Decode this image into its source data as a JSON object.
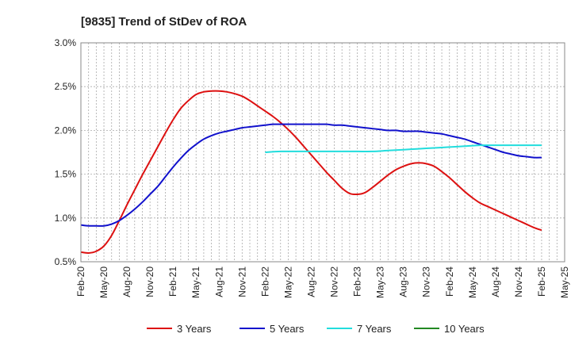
{
  "chart_data": {
    "type": "line",
    "title": "[9835]  Trend of StDev of ROA",
    "xlabel": "",
    "ylabel": "",
    "x_ticks": [
      "Feb-20",
      "May-20",
      "Aug-20",
      "Nov-20",
      "Feb-21",
      "May-21",
      "Aug-21",
      "Nov-21",
      "Feb-22",
      "May-22",
      "Aug-22",
      "Nov-22",
      "Feb-23",
      "May-23",
      "Aug-23",
      "Nov-23",
      "Feb-24",
      "May-24",
      "Aug-24",
      "Nov-24",
      "Feb-25",
      "May-25"
    ],
    "y_ticks": [
      "0.5%",
      "1.0%",
      "1.5%",
      "2.0%",
      "2.5%",
      "3.0%"
    ],
    "ylim": [
      0.5,
      3.0
    ],
    "y_unit": "%",
    "grid": true,
    "legend_position": "bottom",
    "series": [
      {
        "name": "3 Years",
        "color": "#dd1111",
        "points": [
          [
            "Feb-20",
            0.61
          ],
          [
            "Mar-20",
            0.6
          ],
          [
            "Apr-20",
            0.62
          ],
          [
            "May-20",
            0.68
          ],
          [
            "Jun-20",
            0.8
          ],
          [
            "Jul-20",
            0.97
          ],
          [
            "Aug-20",
            1.15
          ],
          [
            "Sep-20",
            1.32
          ],
          [
            "Oct-20",
            1.49
          ],
          [
            "Nov-20",
            1.65
          ],
          [
            "Dec-20",
            1.81
          ],
          [
            "Jan-21",
            1.97
          ],
          [
            "Feb-21",
            2.12
          ],
          [
            "Mar-21",
            2.25
          ],
          [
            "Apr-21",
            2.34
          ],
          [
            "May-21",
            2.41
          ],
          [
            "Jun-21",
            2.44
          ],
          [
            "Jul-21",
            2.45
          ],
          [
            "Aug-21",
            2.45
          ],
          [
            "Sep-21",
            2.44
          ],
          [
            "Oct-21",
            2.42
          ],
          [
            "Nov-21",
            2.39
          ],
          [
            "Dec-21",
            2.34
          ],
          [
            "Jan-22",
            2.28
          ],
          [
            "Feb-22",
            2.22
          ],
          [
            "Mar-22",
            2.16
          ],
          [
            "Apr-22",
            2.09
          ],
          [
            "May-22",
            2.01
          ],
          [
            "Jun-22",
            1.92
          ],
          [
            "Jul-22",
            1.82
          ],
          [
            "Aug-22",
            1.72
          ],
          [
            "Sep-22",
            1.62
          ],
          [
            "Oct-22",
            1.52
          ],
          [
            "Nov-22",
            1.43
          ],
          [
            "Dec-22",
            1.34
          ],
          [
            "Jan-23",
            1.28
          ],
          [
            "Feb-23",
            1.27
          ],
          [
            "Mar-23",
            1.29
          ],
          [
            "Apr-23",
            1.35
          ],
          [
            "May-23",
            1.42
          ],
          [
            "Jun-23",
            1.49
          ],
          [
            "Jul-23",
            1.55
          ],
          [
            "Aug-23",
            1.59
          ],
          [
            "Sep-23",
            1.62
          ],
          [
            "Oct-23",
            1.63
          ],
          [
            "Nov-23",
            1.62
          ],
          [
            "Dec-23",
            1.59
          ],
          [
            "Jan-24",
            1.53
          ],
          [
            "Feb-24",
            1.46
          ],
          [
            "Mar-24",
            1.38
          ],
          [
            "Apr-24",
            1.3
          ],
          [
            "May-24",
            1.23
          ],
          [
            "Jun-24",
            1.17
          ],
          [
            "Jul-24",
            1.13
          ],
          [
            "Aug-24",
            1.09
          ],
          [
            "Sep-24",
            1.05
          ],
          [
            "Oct-24",
            1.01
          ],
          [
            "Nov-24",
            0.97
          ],
          [
            "Dec-24",
            0.93
          ],
          [
            "Jan-25",
            0.89
          ],
          [
            "Feb-25",
            0.86
          ]
        ]
      },
      {
        "name": "5 Years",
        "color": "#1111cc",
        "points": [
          [
            "Feb-20",
            0.92
          ],
          [
            "Mar-20",
            0.91
          ],
          [
            "Apr-20",
            0.91
          ],
          [
            "May-20",
            0.91
          ],
          [
            "Jun-20",
            0.93
          ],
          [
            "Jul-20",
            0.97
          ],
          [
            "Aug-20",
            1.03
          ],
          [
            "Sep-20",
            1.1
          ],
          [
            "Oct-20",
            1.18
          ],
          [
            "Nov-20",
            1.27
          ],
          [
            "Dec-20",
            1.36
          ],
          [
            "Jan-21",
            1.47
          ],
          [
            "Feb-21",
            1.58
          ],
          [
            "Mar-21",
            1.68
          ],
          [
            "Apr-21",
            1.77
          ],
          [
            "May-21",
            1.84
          ],
          [
            "Jun-21",
            1.9
          ],
          [
            "Jul-21",
            1.94
          ],
          [
            "Aug-21",
            1.97
          ],
          [
            "Sep-21",
            1.99
          ],
          [
            "Oct-21",
            2.01
          ],
          [
            "Nov-21",
            2.03
          ],
          [
            "Dec-21",
            2.04
          ],
          [
            "Jan-22",
            2.05
          ],
          [
            "Feb-22",
            2.06
          ],
          [
            "Mar-22",
            2.07
          ],
          [
            "Apr-22",
            2.07
          ],
          [
            "May-22",
            2.07
          ],
          [
            "Jun-22",
            2.07
          ],
          [
            "Jul-22",
            2.07
          ],
          [
            "Aug-22",
            2.07
          ],
          [
            "Sep-22",
            2.07
          ],
          [
            "Oct-22",
            2.07
          ],
          [
            "Nov-22",
            2.06
          ],
          [
            "Dec-22",
            2.06
          ],
          [
            "Jan-23",
            2.05
          ],
          [
            "Feb-23",
            2.04
          ],
          [
            "Mar-23",
            2.03
          ],
          [
            "Apr-23",
            2.02
          ],
          [
            "May-23",
            2.01
          ],
          [
            "Jun-23",
            2.0
          ],
          [
            "Jul-23",
            2.0
          ],
          [
            "Aug-23",
            1.99
          ],
          [
            "Sep-23",
            1.99
          ],
          [
            "Oct-23",
            1.99
          ],
          [
            "Nov-23",
            1.98
          ],
          [
            "Dec-23",
            1.97
          ],
          [
            "Jan-24",
            1.96
          ],
          [
            "Feb-24",
            1.94
          ],
          [
            "Mar-24",
            1.92
          ],
          [
            "Apr-24",
            1.9
          ],
          [
            "May-24",
            1.87
          ],
          [
            "Jun-24",
            1.84
          ],
          [
            "Jul-24",
            1.81
          ],
          [
            "Aug-24",
            1.78
          ],
          [
            "Sep-24",
            1.75
          ],
          [
            "Oct-24",
            1.73
          ],
          [
            "Nov-24",
            1.71
          ],
          [
            "Dec-24",
            1.7
          ],
          [
            "Jan-25",
            1.69
          ],
          [
            "Feb-25",
            1.69
          ]
        ]
      },
      {
        "name": "7 Years",
        "color": "#22dddd",
        "points": [
          [
            "Feb-22",
            1.75
          ],
          [
            "Apr-22",
            1.76
          ],
          [
            "Jun-22",
            1.76
          ],
          [
            "Aug-22",
            1.76
          ],
          [
            "Oct-22",
            1.76
          ],
          [
            "Dec-22",
            1.76
          ],
          [
            "Feb-23",
            1.76
          ],
          [
            "Apr-23",
            1.76
          ],
          [
            "Jun-23",
            1.77
          ],
          [
            "Aug-23",
            1.78
          ],
          [
            "Oct-23",
            1.79
          ],
          [
            "Dec-23",
            1.8
          ],
          [
            "Feb-24",
            1.81
          ],
          [
            "Apr-24",
            1.82
          ],
          [
            "Jun-24",
            1.83
          ],
          [
            "Aug-24",
            1.83
          ],
          [
            "Oct-24",
            1.83
          ],
          [
            "Dec-24",
            1.83
          ],
          [
            "Feb-25",
            1.83
          ]
        ]
      },
      {
        "name": "10 Years",
        "color": "#228822",
        "points": []
      }
    ]
  }
}
